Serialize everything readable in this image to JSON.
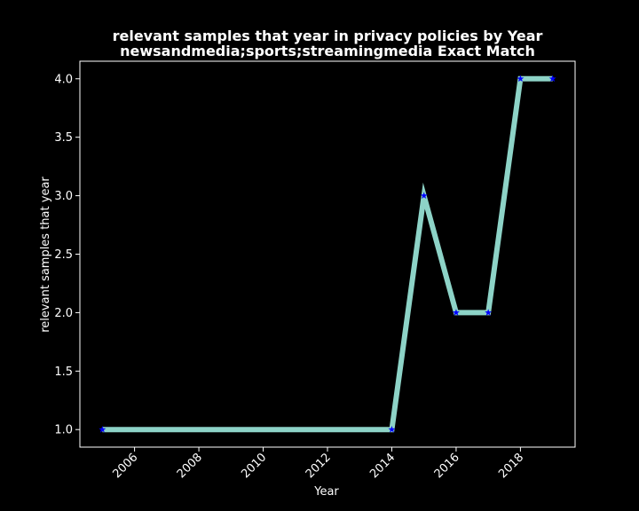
{
  "chart_data": {
    "type": "line",
    "title": "relevant samples that year in privacy policies by Year",
    "subtitle": "newsandmedia;sports;streamingmedia Exact Match",
    "xlabel": "Year",
    "ylabel": "relevant samples that year",
    "x": [
      2005,
      2014,
      2015,
      2016,
      2017,
      2018,
      2019
    ],
    "series": [
      {
        "values": [
          1.0,
          1.0,
          3.0,
          2.0,
          2.0,
          4.0,
          4.0
        ]
      }
    ],
    "xticks": [
      2006,
      2008,
      2010,
      2012,
      2014,
      2016,
      2018
    ],
    "yticks": [
      1.0,
      1.5,
      2.0,
      2.5,
      3.0,
      3.5,
      4.0
    ],
    "xlim": [
      2004.3,
      2019.7
    ],
    "ylim": [
      0.85,
      4.15
    ],
    "grid": false,
    "colors": {
      "background": "#000000",
      "line": "#8dd3c7",
      "marker": "#0000ff",
      "axes": "#ffffff",
      "text": "#ffffff"
    }
  }
}
